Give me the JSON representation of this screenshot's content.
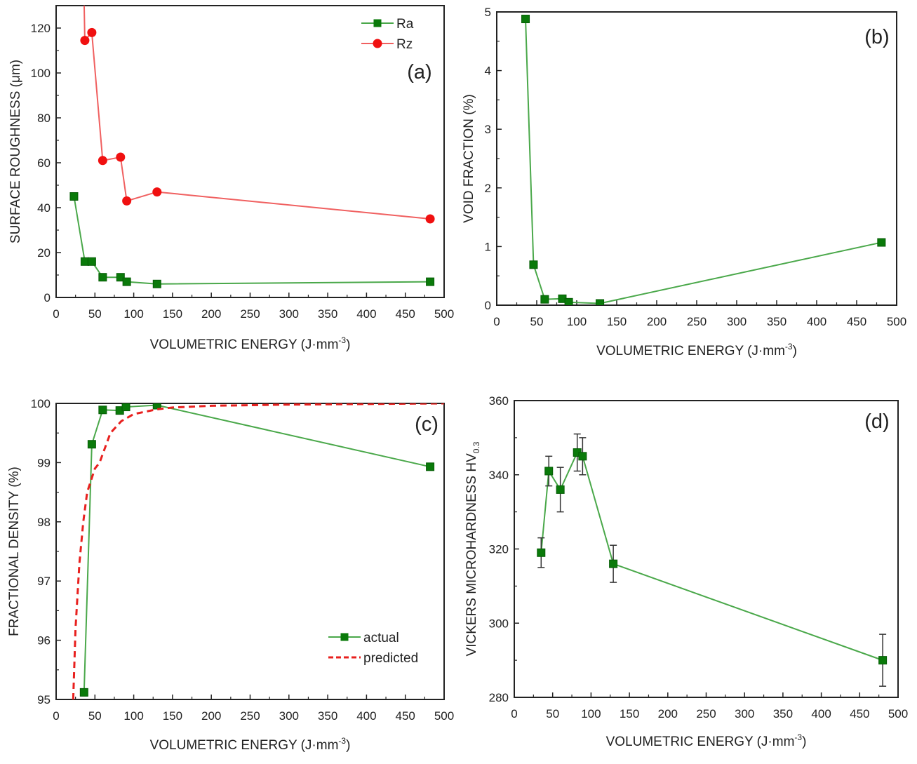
{
  "chart_data": [
    {
      "id": "a",
      "type": "line",
      "panel_label": "(a)",
      "xlabel": "VOLUMETRIC ENERGY (J·mm",
      "xlabel_sup": "-3",
      "xlabel_close": ")",
      "ylabel": "SURFACE ROUGHNESS (μm)",
      "xlim": [
        0,
        500
      ],
      "ylim": [
        0,
        130
      ],
      "xticks": [
        0,
        50,
        100,
        150,
        200,
        250,
        300,
        350,
        400,
        450,
        500
      ],
      "yticks": [
        0,
        20,
        40,
        60,
        80,
        100,
        120
      ],
      "legend_position": "top-right",
      "series": [
        {
          "name": "Ra",
          "color": "#1a8a1a",
          "marker": "square",
          "x": [
            23,
            37,
            46,
            60,
            83,
            91,
            130,
            482
          ],
          "y": [
            45,
            16,
            16,
            9,
            9,
            7,
            6,
            7
          ]
        },
        {
          "name": "Rz",
          "color": "#e8201e",
          "marker": "circle",
          "x": [
            35,
            37,
            46,
            60,
            83,
            91,
            130,
            482
          ],
          "y": [
            150,
            114.5,
            118,
            61,
            62.5,
            43,
            47,
            35
          ]
        }
      ]
    },
    {
      "id": "b",
      "type": "line",
      "panel_label": "(b)",
      "xlabel": "VOLUMETRIC ENERGY (J·mm",
      "xlabel_sup": "-3",
      "xlabel_close": ")",
      "ylabel": "VOID FRACTION (%)",
      "xlim": [
        0,
        500
      ],
      "ylim": [
        0,
        5
      ],
      "xticks": [
        0,
        50,
        100,
        150,
        200,
        250,
        300,
        350,
        400,
        450,
        500
      ],
      "yticks": [
        0,
        1,
        2,
        3,
        4,
        5
      ],
      "series": [
        {
          "color": "#1a8a1a",
          "marker": "square",
          "x": [
            36,
            46,
            60,
            82,
            90,
            129,
            481
          ],
          "y": [
            4.88,
            0.69,
            0.1,
            0.11,
            0.05,
            0.03,
            1.07
          ]
        }
      ]
    },
    {
      "id": "c",
      "type": "line",
      "panel_label": "(c)",
      "xlabel": "VOLUMETRIC ENERGY (J·mm",
      "xlabel_sup": "-3",
      "xlabel_close": ")",
      "ylabel": "FRACTIONAL DENSITY (%)",
      "xlim": [
        0,
        500
      ],
      "ylim": [
        95,
        100
      ],
      "xticks": [
        0,
        50,
        100,
        150,
        200,
        250,
        300,
        350,
        400,
        450,
        500
      ],
      "yticks": [
        95,
        96,
        97,
        98,
        99,
        100
      ],
      "legend_position": "bottom-right",
      "series": [
        {
          "name": "actual",
          "color": "#1a8a1a",
          "marker": "square",
          "x": [
            36,
            46,
            60,
            82,
            90,
            130,
            482
          ],
          "y": [
            95.12,
            99.31,
            99.89,
            99.88,
            99.94,
            99.97,
            98.93
          ]
        },
        {
          "name": "predicted",
          "color": "#e8201e",
          "marker": "none",
          "dash": true,
          "x": [
            22,
            25,
            30,
            35,
            40,
            50,
            56,
            70,
            84,
            100,
            130,
            150,
            200,
            300,
            400,
            500
          ],
          "y": [
            95,
            96.2,
            97.3,
            98.0,
            98.5,
            98.9,
            99.0,
            99.5,
            99.7,
            99.82,
            99.9,
            99.93,
            99.96,
            99.98,
            99.99,
            100
          ]
        }
      ]
    },
    {
      "id": "d",
      "type": "line",
      "panel_label": "(d)",
      "xlabel": "VOLUMETRIC ENERGY (J·mm",
      "xlabel_sup": "-3",
      "xlabel_close": ")",
      "ylabel": "VICKERS MICROHARDNESS HV",
      "ylabel_sub": "0.3",
      "xlim": [
        0,
        500
      ],
      "ylim": [
        280,
        360
      ],
      "xticks": [
        0,
        50,
        100,
        150,
        200,
        250,
        300,
        350,
        400,
        450,
        500
      ],
      "yticks": [
        280,
        300,
        320,
        340,
        360
      ],
      "series": [
        {
          "color": "#1a8a1a",
          "marker": "square",
          "x": [
            35,
            45,
            60,
            82,
            89,
            129,
            480
          ],
          "y": [
            319,
            341,
            336,
            346,
            345,
            316,
            290
          ],
          "err": [
            4,
            4,
            6,
            5,
            5,
            5,
            7
          ]
        }
      ]
    }
  ]
}
